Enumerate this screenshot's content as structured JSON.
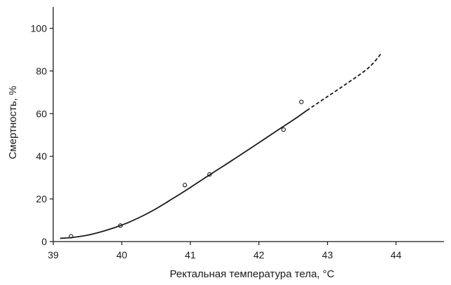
{
  "chart_data": {
    "type": "scatter",
    "xlabel": "Ректальная температура тела, °С",
    "ylabel": "Смертность, %",
    "xlim": [
      39,
      44.7
    ],
    "ylim": [
      0,
      110
    ],
    "x_ticks": [
      39,
      40,
      41,
      42,
      43,
      44
    ],
    "y_ticks": [
      0,
      20,
      40,
      60,
      80,
      100
    ],
    "x_tick_labels": [
      "39",
      "40",
      "41",
      "42",
      "43",
      "44"
    ],
    "y_tick_labels": [
      "0",
      "20",
      "40",
      "60",
      "80",
      "100"
    ],
    "grid": false,
    "legend": "none",
    "series": [
      {
        "kind": "points",
        "marker": "open-circle",
        "x": [
          39.26,
          39.98,
          40.92,
          41.28,
          42.36,
          42.62
        ],
        "y": [
          2.5,
          7.5,
          26.5,
          31.5,
          52.5,
          65.5
        ]
      },
      {
        "kind": "fit-line",
        "style": "solid",
        "x": [
          39.1,
          39.3,
          39.5,
          39.7,
          39.9,
          40.1,
          40.3,
          40.5,
          40.7,
          40.9,
          41.1,
          41.3,
          41.5,
          41.7,
          41.9,
          42.1,
          42.3,
          42.5,
          42.7
        ],
        "y": [
          1.5,
          2.0,
          3.0,
          4.6,
          6.6,
          9.0,
          12.0,
          15.4,
          19.3,
          23.3,
          27.5,
          31.7,
          35.8,
          40.0,
          44.2,
          48.5,
          52.8,
          57.0,
          61.5
        ]
      },
      {
        "kind": "extrapolation",
        "style": "dashed",
        "x": [
          42.7,
          43.0,
          43.3,
          43.6,
          43.78
        ],
        "y": [
          61.5,
          68.0,
          74.5,
          81.5,
          88.0
        ]
      }
    ]
  }
}
